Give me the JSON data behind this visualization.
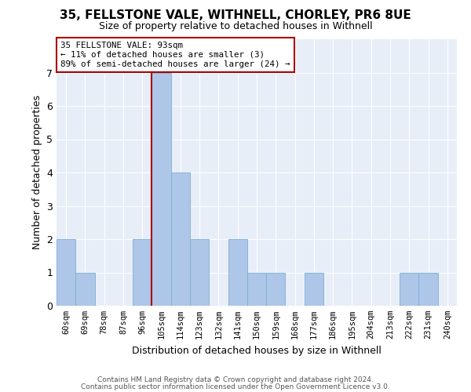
{
  "title1": "35, FELLSTONE VALE, WITHNELL, CHORLEY, PR6 8UE",
  "title2": "Size of property relative to detached houses in Withnell",
  "xlabel": "Distribution of detached houses by size in Withnell",
  "ylabel": "Number of detached properties",
  "bar_labels": [
    "60sqm",
    "69sqm",
    "78sqm",
    "87sqm",
    "96sqm",
    "105sqm",
    "114sqm",
    "123sqm",
    "132sqm",
    "141sqm",
    "150sqm",
    "159sqm",
    "168sqm",
    "177sqm",
    "186sqm",
    "195sqm",
    "204sqm",
    "213sqm",
    "222sqm",
    "231sqm",
    "240sqm"
  ],
  "bar_values": [
    2,
    1,
    0,
    0,
    2,
    7,
    4,
    2,
    0,
    2,
    1,
    1,
    0,
    1,
    0,
    0,
    0,
    0,
    1,
    1,
    0
  ],
  "bar_color": "#aec6e8",
  "bar_edge_color": "#7aafd4",
  "subject_label": "35 FELLSTONE VALE: 93sqm",
  "annotation_line1": "← 11% of detached houses are smaller (3)",
  "annotation_line2": "89% of semi-detached houses are larger (24) →",
  "vline_color": "#aa0000",
  "annotation_box_edgecolor": "#aa0000",
  "vline_x": 4.5,
  "ylim": [
    0,
    8
  ],
  "yticks": [
    0,
    1,
    2,
    3,
    4,
    5,
    6,
    7,
    8
  ],
  "background_color": "#e8eef8",
  "footer1": "Contains HM Land Registry data © Crown copyright and database right 2024.",
  "footer2": "Contains public sector information licensed under the Open Government Licence v3.0."
}
